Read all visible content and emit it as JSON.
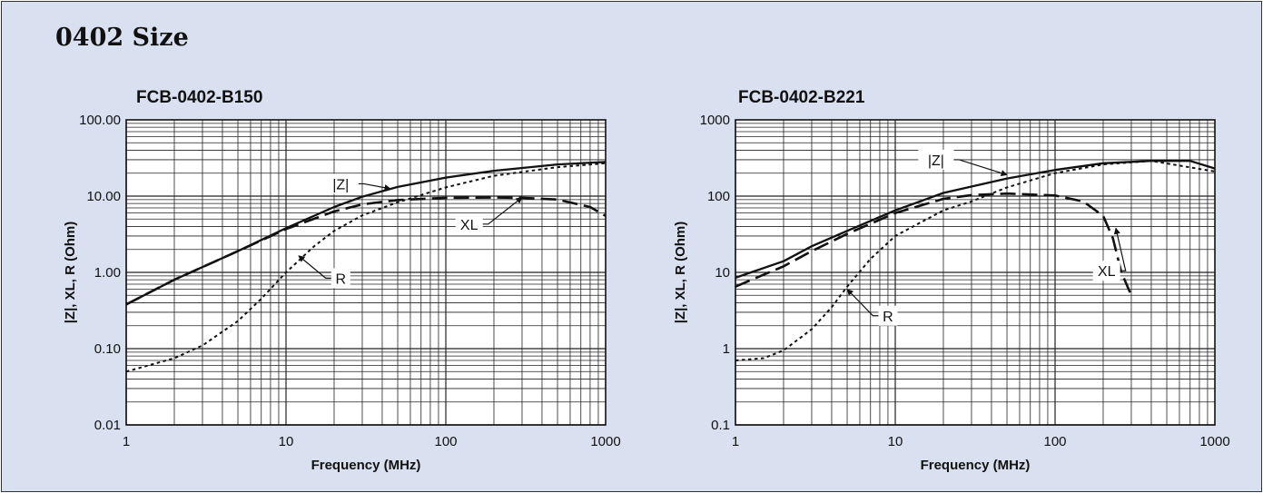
{
  "page_title": "0402 Size",
  "colors": {
    "background": "#d9e0f0",
    "plot_area": "#ffffff",
    "curves": "#111111",
    "grid": "#222222"
  },
  "chart_data": [
    {
      "type": "line",
      "title": "FCB-0402-B150",
      "xlabel": "Frequency (MHz)",
      "ylabel": "|Z|, XL, R (Ohm)",
      "xscale": "log",
      "yscale": "log",
      "xlim": [
        1,
        1000
      ],
      "ylim": [
        0.01,
        100
      ],
      "x_ticks": [
        1,
        10,
        100,
        1000
      ],
      "x_tick_labels": [
        "1",
        "10",
        "100",
        "1000"
      ],
      "y_ticks": [
        0.01,
        0.1,
        1,
        10,
        100
      ],
      "y_tick_labels": [
        "0.01",
        "0.10",
        "1.00",
        "10.00",
        "100.00"
      ],
      "grid": true,
      "series": [
        {
          "name": "|Z|",
          "style": "solid",
          "x": [
            1,
            2,
            5,
            10,
            20,
            30,
            50,
            100,
            200,
            500,
            1000
          ],
          "y": [
            0.38,
            0.8,
            1.9,
            3.8,
            7.2,
            9.8,
            13.2,
            17.5,
            21.5,
            26,
            28
          ]
        },
        {
          "name": "XL",
          "style": "dashed",
          "x": [
            1,
            2,
            5,
            10,
            20,
            30,
            50,
            100,
            200,
            300,
            500,
            800,
            1000
          ],
          "y": [
            0.38,
            0.8,
            1.9,
            3.7,
            6.3,
            7.8,
            8.9,
            9.5,
            9.6,
            9.5,
            9.0,
            7.2,
            5.5
          ]
        },
        {
          "name": "R",
          "style": "dotted",
          "x": [
            1,
            2,
            3,
            5,
            7,
            10,
            15,
            20,
            30,
            50,
            100,
            200,
            500,
            1000
          ],
          "y": [
            0.05,
            0.075,
            0.11,
            0.23,
            0.45,
            1.0,
            2.2,
            3.5,
            5.6,
            8.3,
            13,
            18.5,
            24,
            27
          ]
        }
      ],
      "annotations": [
        {
          "text": "|Z|",
          "x": 22,
          "y": 14.5,
          "target": [
            45,
            12.5
          ]
        },
        {
          "text": "XL",
          "x": 140,
          "y": 4.3,
          "target": [
            300,
            9.6
          ]
        },
        {
          "text": "R",
          "x": 22,
          "y": 0.84,
          "target": [
            12,
            1.65
          ]
        }
      ]
    },
    {
      "type": "line",
      "title": "FCB-0402-B221",
      "xlabel": "Frequency (MHz)",
      "ylabel": "|Z|, XL, R (Ohm)",
      "xscale": "log",
      "yscale": "log",
      "xlim": [
        1,
        1000
      ],
      "ylim": [
        0.1,
        1000
      ],
      "x_ticks": [
        1,
        10,
        100,
        1000
      ],
      "x_tick_labels": [
        "1",
        "10",
        "100",
        "1000"
      ],
      "y_ticks": [
        0.1,
        1,
        10,
        100,
        1000
      ],
      "y_tick_labels": [
        "0.1",
        "1",
        "10",
        "100",
        "1000"
      ],
      "grid": true,
      "series": [
        {
          "name": "|Z|",
          "style": "solid",
          "x": [
            1,
            2,
            3,
            5,
            10,
            20,
            50,
            100,
            200,
            400,
            700,
            1000
          ],
          "y": [
            8.5,
            14,
            22,
            35,
            65,
            110,
            170,
            220,
            270,
            290,
            290,
            230
          ]
        },
        {
          "name": "XL",
          "style": "dashed",
          "x": [
            1,
            2,
            3,
            5,
            10,
            20,
            30,
            50,
            100,
            150,
            200,
            230,
            260,
            300
          ],
          "y": [
            6.5,
            12,
            19,
            32,
            60,
            92,
            103,
            108,
            102,
            85,
            55,
            28,
            10,
            5
          ]
        },
        {
          "name": "R",
          "style": "dotted",
          "x": [
            1,
            1.5,
            2,
            3,
            4,
            5,
            7,
            10,
            20,
            30,
            50,
            100,
            200,
            400,
            1000
          ],
          "y": [
            0.7,
            0.75,
            0.95,
            1.8,
            3.5,
            6.5,
            15,
            30,
            65,
            85,
            130,
            200,
            260,
            290,
            210
          ]
        }
      ],
      "annotations": [
        {
          "text": "|Z|",
          "x": 18,
          "y": 300,
          "target": [
            50,
            190
          ]
        },
        {
          "text": "XL",
          "x": 210,
          "y": 10.5,
          "target": [
            240,
            38
          ]
        },
        {
          "text": "R",
          "x": 9,
          "y": 2.7,
          "target": [
            5,
            6
          ]
        }
      ]
    }
  ]
}
